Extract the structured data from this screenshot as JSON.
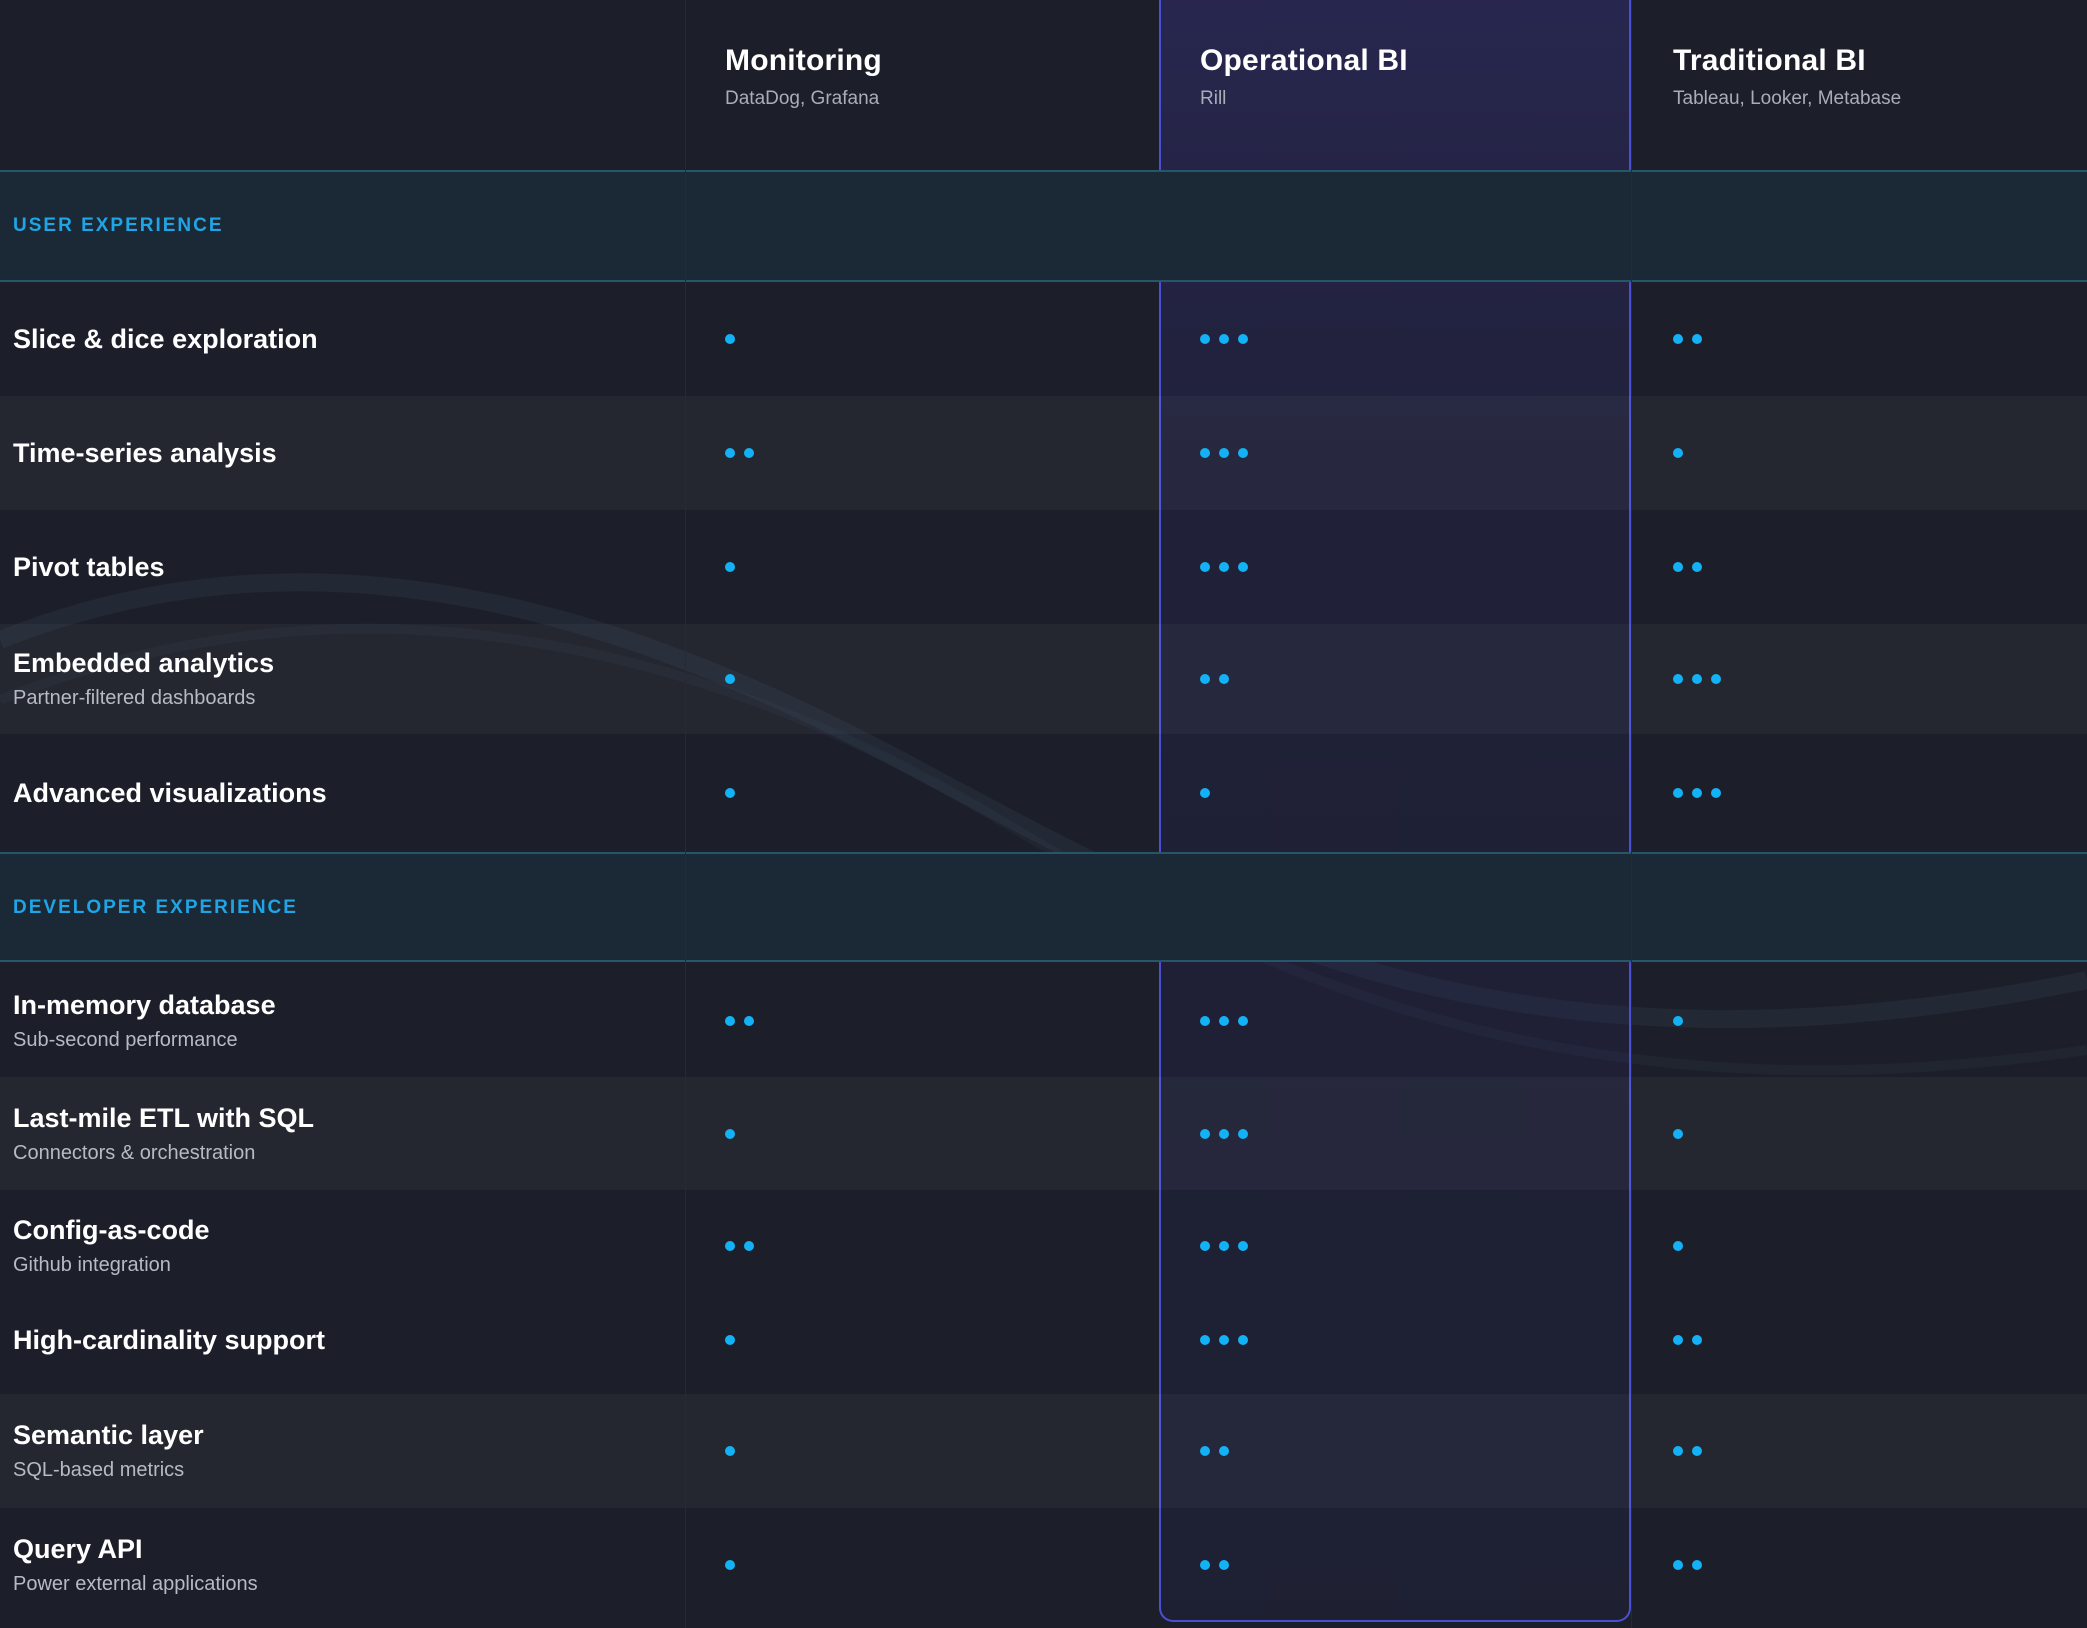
{
  "columns": [
    {
      "title": "Monitoring",
      "subtitle": "DataDog, Grafana"
    },
    {
      "title": "Operational BI",
      "subtitle": "Rill"
    },
    {
      "title": "Traditional BI",
      "subtitle": "Tableau, Looker, Metabase"
    }
  ],
  "colors": {
    "accent": "#13b2f6",
    "highlight_border": "#4b4fd6",
    "section_label": "#1fa5e6"
  },
  "sections": [
    {
      "label": "USER EXPERIENCE",
      "rows": [
        {
          "name": "Slice & dice exploration",
          "sub": "",
          "ratings": [
            1,
            3,
            2
          ]
        },
        {
          "name": "Time-series analysis",
          "sub": "",
          "ratings": [
            2,
            3,
            1
          ]
        },
        {
          "name": "Pivot tables",
          "sub": "",
          "ratings": [
            1,
            3,
            2
          ]
        },
        {
          "name": "Embedded analytics",
          "sub": "Partner-filtered dashboards",
          "ratings": [
            1,
            2,
            3
          ]
        },
        {
          "name": "Advanced visualizations",
          "sub": "",
          "ratings": [
            1,
            1,
            3
          ]
        }
      ]
    },
    {
      "label": "DEVELOPER EXPERIENCE",
      "rows": [
        {
          "name": "In-memory database",
          "sub": "Sub-second performance",
          "ratings": [
            2,
            3,
            1
          ]
        },
        {
          "name": "Last-mile ETL with SQL",
          "sub": "Connectors & orchestration",
          "ratings": [
            1,
            3,
            1
          ]
        },
        {
          "name": "Config-as-code",
          "sub": "Github integration",
          "ratings": [
            2,
            3,
            1
          ]
        },
        {
          "name": "High-cardinality support",
          "sub": "",
          "ratings": [
            1,
            3,
            2
          ]
        },
        {
          "name": "Semantic layer",
          "sub": "SQL-based metrics",
          "ratings": [
            1,
            2,
            2
          ]
        },
        {
          "name": "Query API",
          "sub": "Power external applications",
          "ratings": [
            1,
            2,
            2
          ]
        }
      ]
    }
  ]
}
